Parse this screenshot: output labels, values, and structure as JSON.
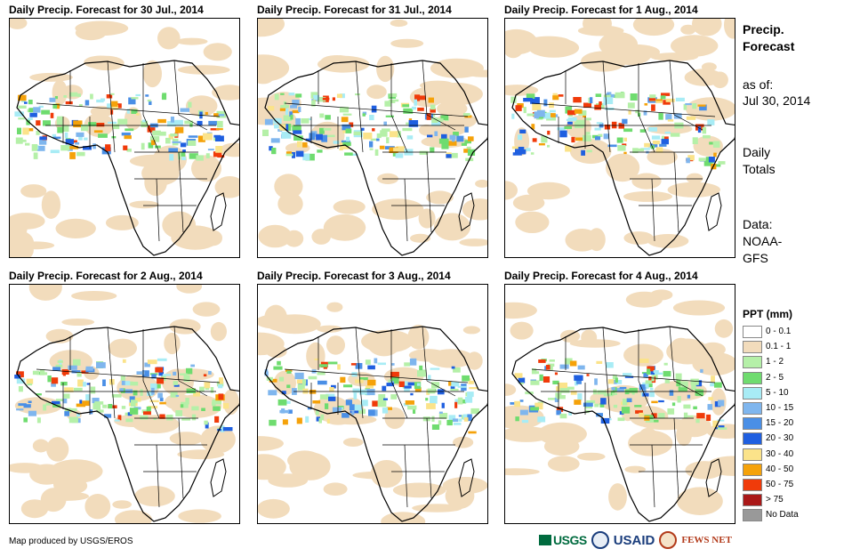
{
  "panels": [
    {
      "title": "Daily Precip. Forecast for 30 Jul., 2014"
    },
    {
      "title": "Daily Precip. Forecast for 31 Jul., 2014"
    },
    {
      "title": "Daily Precip. Forecast for 1 Aug., 2014"
    },
    {
      "title": "Daily Precip. Forecast for 2 Aug., 2014"
    },
    {
      "title": "Daily Precip. Forecast for 3 Aug., 2014"
    },
    {
      "title": "Daily Precip. Forecast for 4 Aug., 2014"
    }
  ],
  "sidebar": {
    "heading_line1": "Precip.",
    "heading_line2": "Forecast",
    "asof_label": "as of:",
    "asof_date": "Jul 30, 2014",
    "totals_line1": "Daily",
    "totals_line2": "Totals",
    "data_line1": "Data:",
    "data_line2": "NOAA-",
    "data_line3": "GFS"
  },
  "legend": {
    "title": "PPT (mm)",
    "items": [
      {
        "label": "0 - 0.1",
        "color": "#ffffff"
      },
      {
        "label": "0.1 - 1",
        "color": "#f2dcbc"
      },
      {
        "label": "1 - 2",
        "color": "#b5f0a8"
      },
      {
        "label": "2 - 5",
        "color": "#6fdc6f"
      },
      {
        "label": "5 - 10",
        "color": "#a8ecf5"
      },
      {
        "label": "10 - 15",
        "color": "#7fb6ee"
      },
      {
        "label": "15 - 20",
        "color": "#4a8fe6"
      },
      {
        "label": "20 - 30",
        "color": "#1f5fe0"
      },
      {
        "label": "30 - 40",
        "color": "#fbe38a"
      },
      {
        "label": "40 - 50",
        "color": "#f5a20a"
      },
      {
        "label": "50 - 75",
        "color": "#f03b0a"
      },
      {
        "label": "> 75",
        "color": "#aa1818"
      },
      {
        "label": "No Data",
        "color": "#999999"
      }
    ]
  },
  "footer": {
    "credit": "Map produced by USGS/EROS",
    "logo_usgs": "USGS",
    "logo_usaid": "USAID",
    "logo_fews": "FEWS NET"
  }
}
